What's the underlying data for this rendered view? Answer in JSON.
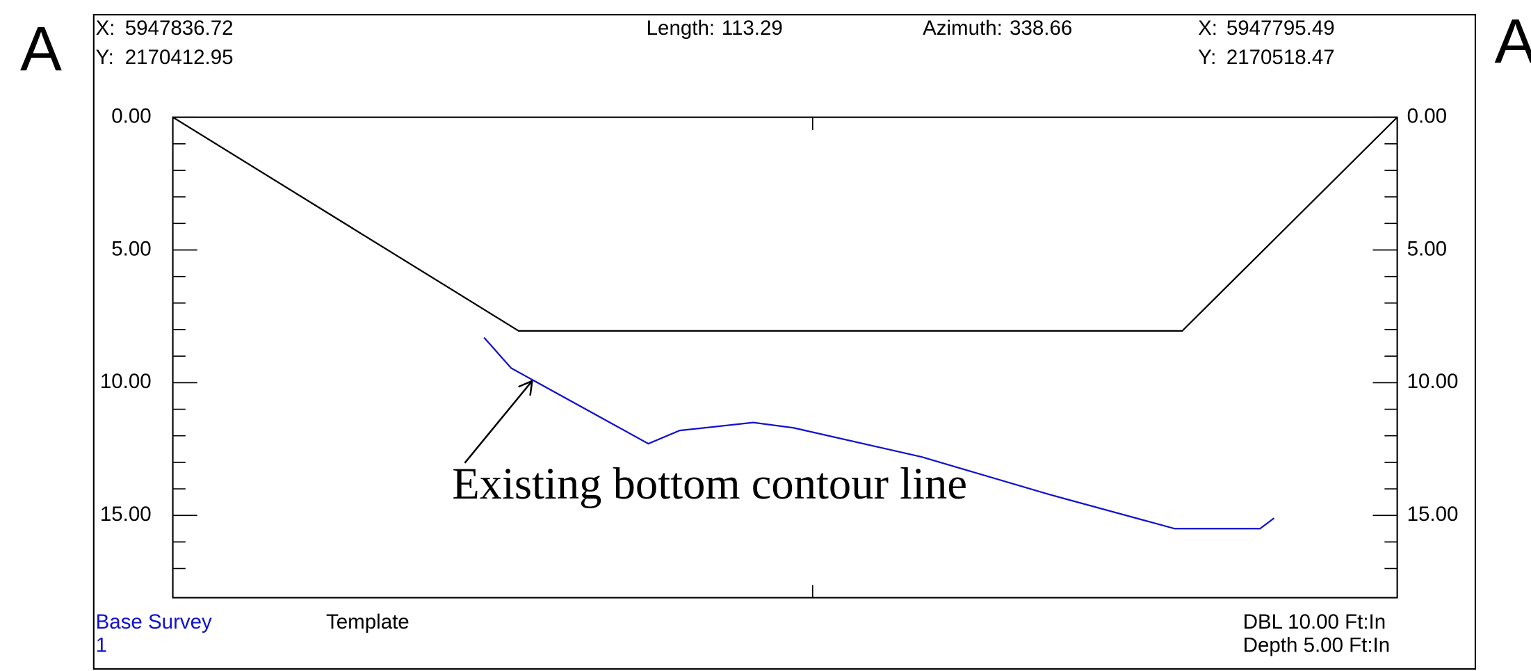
{
  "section_marks": {
    "left": "A",
    "right": "A"
  },
  "header": {
    "start_x": {
      "label": "X:",
      "value": 5947836.72
    },
    "start_y": {
      "label": "Y:",
      "value": 2170412.95
    },
    "length": {
      "label": "Length:",
      "value": 113.29
    },
    "azimuth": {
      "label": "Azimuth:",
      "value": 338.66
    },
    "end_x": {
      "label": "X:",
      "value": 5947795.49
    },
    "end_y": {
      "label": "Y:",
      "value": 2170518.47
    }
  },
  "footer": {
    "survey_number": "1",
    "dbl": "DBL 10.00 Ft:In",
    "depth": "Depth 5.00 Ft:In"
  },
  "annotation": "Existing bottom contour line",
  "chart_data": {
    "type": "line",
    "xlim": [
      0,
      113.29
    ],
    "xticks": [
      59.2
    ],
    "ylim": [
      0,
      18.1
    ],
    "y_inverted": true,
    "yticks": [
      {
        "value": 0,
        "label": "0.00"
      },
      {
        "value": 5,
        "label": "5.00"
      },
      {
        "value": 10,
        "label": "10.00"
      },
      {
        "value": 15,
        "label": "15.00"
      }
    ],
    "y_minor_ticks": [
      1,
      2,
      3,
      4,
      6,
      7,
      8,
      9,
      11,
      12,
      13,
      14,
      16,
      17
    ],
    "series": [
      {
        "name": "Template",
        "color": "#000000",
        "x": [
          0,
          32.0,
          93.4,
          113.29
        ],
        "values": [
          0,
          8.05,
          8.05,
          0
        ]
      },
      {
        "name": "Base Survey",
        "color": "#1010d0",
        "x": [
          28.8,
          31.3,
          44.0,
          46.9,
          53.7,
          57.4,
          69.3,
          81.0,
          92.7,
          100.6,
          101.9
        ],
        "values": [
          8.3,
          9.45,
          12.3,
          11.8,
          11.5,
          11.7,
          12.8,
          14.2,
          15.5,
          15.5,
          15.1
        ]
      }
    ]
  }
}
